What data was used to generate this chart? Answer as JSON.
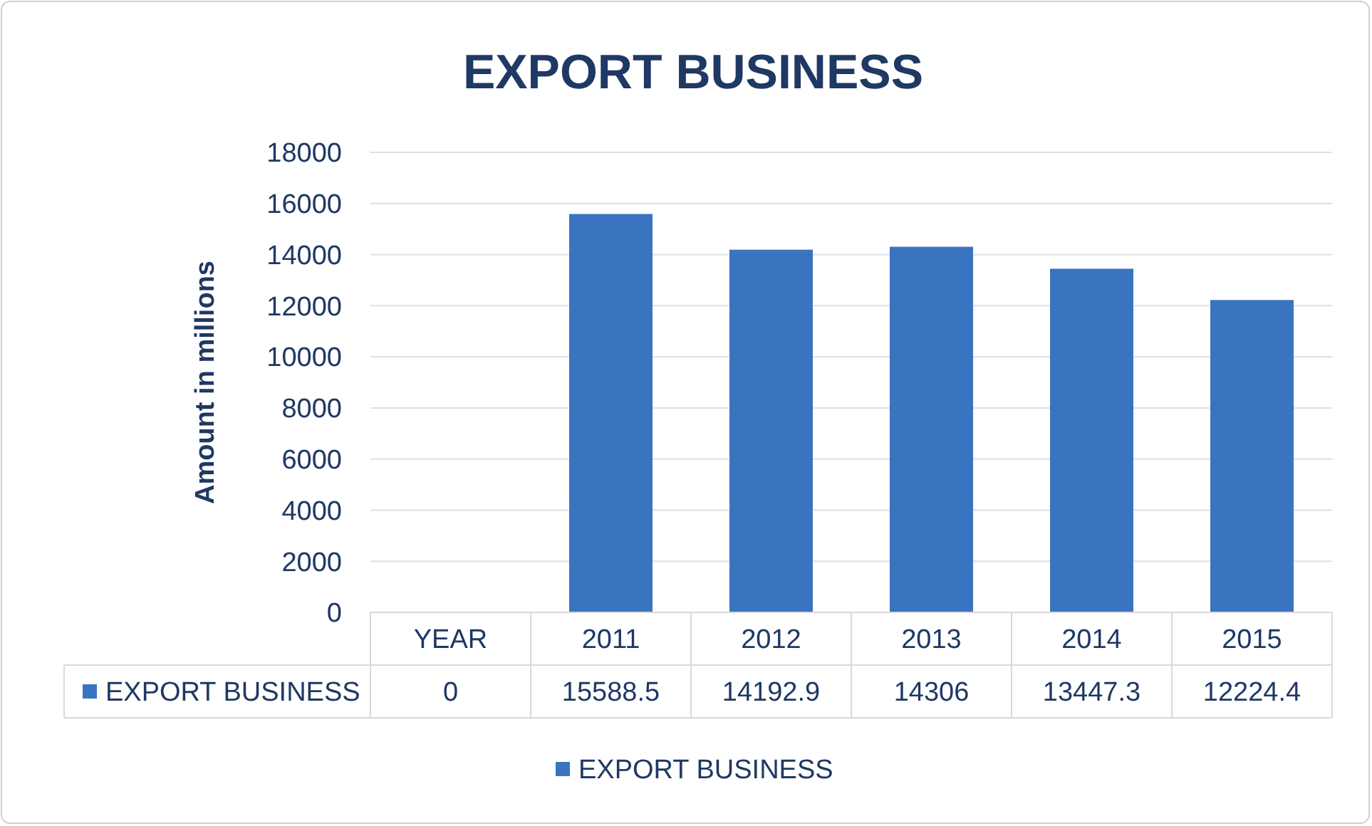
{
  "chart_data": {
    "type": "bar",
    "title": "EXPORT BUSINESS",
    "ylabel": "Amount in millions",
    "categories": [
      "YEAR",
      "2011",
      "2012",
      "2013",
      "2014",
      "2015"
    ],
    "series": [
      {
        "name": "EXPORT BUSINESS",
        "color": "#3a74c0",
        "values": [
          0,
          15588.5,
          14192.9,
          14306,
          13447.3,
          12224.4
        ]
      }
    ],
    "ylim": [
      0,
      18000
    ],
    "yticks": [
      0,
      2000,
      4000,
      6000,
      8000,
      10000,
      12000,
      14000,
      16000,
      18000
    ],
    "grid": "y",
    "legend": "bottom",
    "data_labels": true
  }
}
